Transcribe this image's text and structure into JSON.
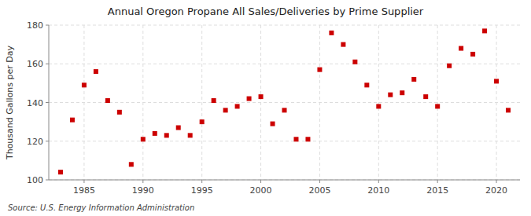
{
  "chart_data": {
    "type": "scatter",
    "title": "Annual Oregon Propane All Sales/Deliveries by Prime Supplier",
    "ylabel": "Thousand Gallons per Day",
    "source": "Source: U.S. Energy Information Administration",
    "x": [
      1983,
      1984,
      1985,
      1986,
      1987,
      1988,
      1989,
      1990,
      1991,
      1992,
      1993,
      1994,
      1995,
      1996,
      1997,
      1998,
      1999,
      2000,
      2001,
      2002,
      2003,
      2004,
      2005,
      2006,
      2007,
      2008,
      2009,
      2010,
      2011,
      2012,
      2013,
      2014,
      2015,
      2016,
      2017,
      2018,
      2019,
      2020,
      2021
    ],
    "values": [
      104,
      131,
      149,
      156,
      141,
      135,
      108,
      121,
      124,
      123,
      127,
      123,
      130,
      141,
      136,
      138,
      142,
      143,
      129,
      136,
      121,
      121,
      157,
      176,
      170,
      161,
      149,
      138,
      144,
      145,
      152,
      143,
      138,
      159,
      168,
      165,
      177,
      151,
      136
    ],
    "color": "#cc0000",
    "marker": "square",
    "xlim": [
      1982,
      2022
    ],
    "ylim": [
      100,
      180
    ],
    "xticks": [
      1985,
      1990,
      1995,
      2000,
      2005,
      2010,
      2015,
      2020
    ],
    "yticks": [
      100,
      120,
      140,
      160,
      180
    ],
    "grid": true
  }
}
